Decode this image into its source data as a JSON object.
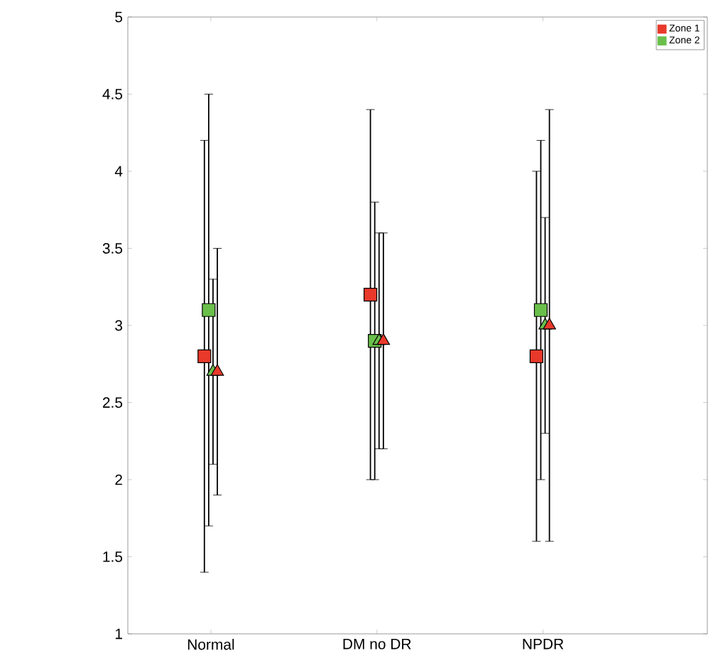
{
  "chart_data": {
    "type": "scatter",
    "categories": [
      "Normal",
      "DM no DR",
      "NPDR"
    ],
    "series": [
      {
        "name": "Zone 1",
        "color": "#e8392b",
        "marker": "square",
        "values": [
          2.8,
          3.2,
          2.8
        ],
        "errors": [
          [
            1.4,
            4.2
          ],
          [
            2.0,
            4.4
          ],
          [
            1.6,
            4.0
          ]
        ]
      },
      {
        "name": "Zone 2",
        "color": "#6abf4b",
        "marker": "square",
        "values": [
          3.1,
          2.9,
          3.1
        ],
        "errors": [
          [
            1.7,
            4.5
          ],
          [
            2.0,
            3.8
          ],
          [
            2.0,
            4.2
          ]
        ]
      },
      {
        "color": "#6abf4b",
        "marker": "triangle",
        "values": [
          2.7,
          2.9,
          3.0
        ],
        "errors": [
          [
            2.1,
            3.3
          ],
          [
            2.2,
            3.6
          ],
          [
            2.3,
            3.7
          ]
        ]
      },
      {
        "color": "#e8392b",
        "marker": "triangle",
        "values": [
          2.7,
          2.9,
          3.0
        ],
        "errors": [
          [
            1.9,
            3.5
          ],
          [
            2.2,
            3.6
          ],
          [
            1.6,
            4.4
          ]
        ]
      }
    ],
    "ylim": [
      1,
      5
    ],
    "yticks": [
      1,
      1.5,
      2,
      2.5,
      3,
      3.5,
      4,
      4.5,
      5
    ],
    "grid": false,
    "legend": "top right"
  }
}
